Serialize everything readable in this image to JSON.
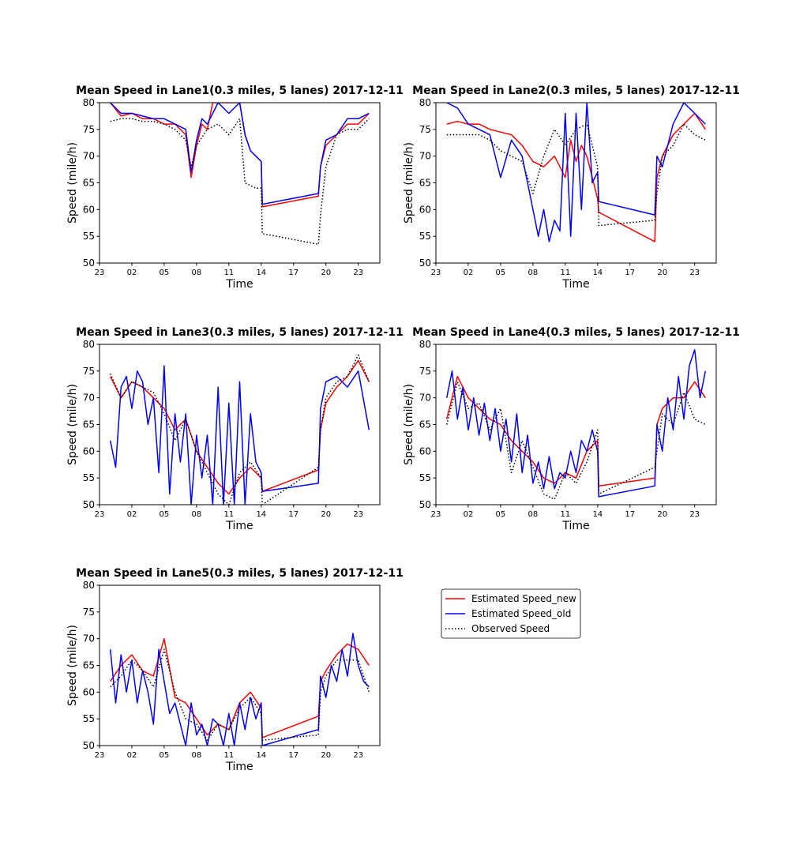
{
  "legend": {
    "entries": [
      {
        "label": "Estimated Speed_new",
        "color": "#ff0000",
        "style": "solid"
      },
      {
        "label": "Estimated Speed_old",
        "color": "#0000ff",
        "style": "solid"
      },
      {
        "label": "Observed Speed",
        "color": "#000000",
        "style": "dotted"
      }
    ]
  },
  "chart_data": [
    {
      "type": "line",
      "title": "Mean Speed in Lane1(0.3 miles, 5 lanes) 2017-12-11",
      "xlabel": "Time",
      "ylabel": "Speed (mile/h)",
      "ylim": [
        50,
        80
      ],
      "xlim": [
        23,
        49
      ],
      "xticks": [
        23,
        26,
        29,
        32,
        35,
        38,
        41,
        44,
        47
      ],
      "xtick_labels": [
        "23",
        "02",
        "05",
        "08",
        "11",
        "14",
        "17",
        "20",
        "23"
      ],
      "yticks": [
        50,
        55,
        60,
        65,
        70,
        75,
        80
      ],
      "series": [
        {
          "name": "Estimated Speed_new",
          "x": [
            24,
            25,
            26,
            27,
            28,
            29,
            30,
            31,
            31.5,
            32,
            32.5,
            33,
            33.5,
            34,
            35,
            36,
            36.5,
            37,
            37.5,
            38,
            38.1,
            43.3,
            43.5,
            44,
            45,
            46,
            47,
            48
          ],
          "values": [
            80,
            77.5,
            78,
            77,
            77,
            76,
            76,
            74,
            66,
            72,
            76,
            75,
            80,
            80,
            80,
            80,
            74,
            71,
            70,
            69,
            60.5,
            62.5,
            68,
            72,
            74,
            76,
            76,
            78
          ]
        },
        {
          "name": "Estimated Speed_old",
          "x": [
            24,
            25,
            26,
            27,
            28,
            29,
            30,
            31,
            31.5,
            32,
            32.5,
            33,
            33.5,
            34,
            35,
            36,
            36.5,
            37,
            37.5,
            38,
            38.1,
            43.3,
            43.5,
            44,
            45,
            46,
            47,
            48
          ],
          "values": [
            80,
            78,
            78,
            77.5,
            77,
            77,
            76,
            75,
            67,
            73,
            77,
            76,
            78,
            80,
            78,
            80,
            74,
            71,
            70,
            69,
            61,
            63,
            68,
            73,
            74,
            77,
            77,
            78
          ]
        },
        {
          "name": "Observed Speed",
          "x": [
            24,
            25,
            26,
            27,
            28,
            29,
            30,
            31,
            31.5,
            32,
            33,
            34,
            35,
            36,
            36.5,
            37,
            37.5,
            38,
            38.1,
            43.3,
            43.5,
            44,
            45,
            46,
            47,
            48
          ],
          "values": [
            76.5,
            77,
            77,
            76.5,
            76.5,
            76,
            75,
            73,
            68,
            72,
            75,
            76,
            74,
            77,
            65,
            64.5,
            64,
            64,
            55.5,
            53.5,
            59,
            68,
            74,
            75,
            75,
            77
          ]
        }
      ]
    },
    {
      "type": "line",
      "title": "Mean Speed in Lane2(0.3 miles, 5 lanes) 2017-12-11",
      "xlabel": "Time",
      "ylabel": "Speed (mile/h)",
      "ylim": [
        50,
        80
      ],
      "xlim": [
        23,
        49
      ],
      "xticks": [
        23,
        26,
        29,
        32,
        35,
        38,
        41,
        44,
        47
      ],
      "xtick_labels": [
        "23",
        "02",
        "05",
        "08",
        "11",
        "14",
        "17",
        "20",
        "23"
      ],
      "yticks": [
        50,
        55,
        60,
        65,
        70,
        75,
        80
      ],
      "series": [
        {
          "name": "Estimated Speed_new",
          "x": [
            24,
            25,
            26,
            27,
            28,
            29,
            30,
            31,
            32,
            33,
            34,
            35,
            35.5,
            36,
            36.5,
            37,
            37.5,
            38,
            38.1,
            43.3,
            43.5,
            44,
            45,
            46,
            47,
            48
          ],
          "values": [
            76,
            76.5,
            76,
            76,
            75,
            74.5,
            74,
            72,
            69,
            68,
            70,
            66,
            73,
            69,
            72,
            70,
            66,
            62,
            59.5,
            54,
            66,
            70,
            74,
            76,
            78,
            75
          ]
        },
        {
          "name": "Estimated Speed_old",
          "x": [
            24,
            25,
            26,
            27,
            28,
            29,
            30,
            31,
            32,
            32.5,
            33,
            33.5,
            34,
            34.5,
            35,
            35.5,
            36,
            36.5,
            37,
            37.5,
            38,
            38.1,
            43.3,
            43.5,
            44,
            45,
            46,
            47,
            48
          ],
          "values": [
            80,
            79,
            76,
            75,
            74,
            66,
            73,
            70,
            60,
            55,
            60,
            54,
            58,
            56,
            78,
            55,
            78,
            60,
            80,
            65,
            67,
            61.5,
            59,
            70,
            68,
            76,
            80,
            78,
            76
          ]
        },
        {
          "name": "Observed Speed",
          "x": [
            24,
            25,
            26,
            27,
            28,
            29,
            30,
            31,
            32,
            33,
            34,
            35,
            36,
            37,
            38,
            38.1,
            43.3,
            43.5,
            44,
            45,
            46,
            47,
            48
          ],
          "values": [
            74,
            74,
            74,
            74,
            73,
            71,
            70,
            69,
            63,
            70,
            75,
            72,
            75,
            76,
            68,
            57,
            58,
            63,
            70,
            72,
            76,
            74,
            73
          ]
        }
      ]
    },
    {
      "type": "line",
      "title": "Mean Speed in Lane3(0.3 miles, 5 lanes) 2017-12-11",
      "xlabel": "Time",
      "ylabel": "Speed (mile/h)",
      "ylim": [
        50,
        80
      ],
      "xlim": [
        23,
        49
      ],
      "xticks": [
        23,
        26,
        29,
        32,
        35,
        38,
        41,
        44,
        47
      ],
      "xtick_labels": [
        "23",
        "02",
        "05",
        "08",
        "11",
        "14",
        "17",
        "20",
        "23"
      ],
      "yticks": [
        50,
        55,
        60,
        65,
        70,
        75,
        80
      ],
      "series": [
        {
          "name": "Estimated Speed_new",
          "x": [
            24,
            25,
            26,
            27,
            28,
            29,
            30,
            31,
            32,
            33,
            34,
            35,
            36,
            37,
            38,
            38.1,
            43.3,
            43.5,
            44,
            45,
            46,
            47,
            48
          ],
          "values": [
            74,
            70,
            73,
            72,
            70,
            68,
            64,
            66,
            60,
            57,
            54,
            52,
            55,
            57,
            55,
            52.5,
            56.5,
            64,
            69,
            72,
            74,
            77,
            73
          ]
        },
        {
          "name": "Estimated Speed_old",
          "x": [
            24,
            24.5,
            25,
            25.5,
            26,
            26.5,
            27,
            27.5,
            28,
            28.5,
            29,
            29.5,
            30,
            30.5,
            31,
            31.5,
            32,
            32.5,
            33,
            33.5,
            34,
            34.5,
            35,
            35.5,
            36,
            36.5,
            37,
            37.5,
            38,
            38.1,
            43.3,
            43.5,
            44,
            45,
            46,
            47,
            48
          ],
          "values": [
            62,
            57,
            72,
            74,
            68,
            75,
            73,
            65,
            70,
            56,
            76,
            52,
            67,
            58,
            67,
            50,
            63,
            55,
            63,
            50,
            72,
            50,
            69,
            50,
            73,
            50,
            67,
            58,
            56,
            52.5,
            54,
            68,
            73,
            74,
            72,
            75,
            64
          ]
        },
        {
          "name": "Observed Speed",
          "x": [
            24,
            25,
            26,
            27,
            28,
            29,
            30,
            31,
            32,
            33,
            34,
            35,
            36,
            37,
            38,
            38.1,
            43.3,
            43.5,
            44,
            45,
            46,
            47,
            48
          ],
          "values": [
            74.5,
            70,
            73,
            72,
            71,
            67,
            62,
            66,
            60,
            56,
            52,
            50,
            56,
            58,
            55,
            50,
            57,
            64,
            70,
            73,
            74,
            78,
            73
          ]
        }
      ]
    },
    {
      "type": "line",
      "title": "Mean Speed in Lane4(0.3 miles, 5 lanes) 2017-12-11",
      "xlabel": "Time",
      "ylabel": "Speed (mile/h)",
      "ylim": [
        50,
        80
      ],
      "xlim": [
        23,
        49
      ],
      "xticks": [
        23,
        26,
        29,
        32,
        35,
        38,
        41,
        44,
        47
      ],
      "xtick_labels": [
        "23",
        "02",
        "05",
        "08",
        "11",
        "14",
        "17",
        "20",
        "23"
      ],
      "yticks": [
        50,
        55,
        60,
        65,
        70,
        75,
        80
      ],
      "series": [
        {
          "name": "Estimated Speed_new",
          "x": [
            24,
            25,
            26,
            27,
            28,
            29,
            30,
            31,
            32,
            33,
            34,
            35,
            36,
            37,
            38,
            38.1,
            43.3,
            43.5,
            44,
            45,
            46,
            47,
            48
          ],
          "values": [
            66,
            74,
            70,
            68,
            66,
            65,
            62,
            60,
            58,
            55,
            54,
            56,
            55,
            60,
            62,
            53.5,
            55,
            65,
            68,
            70,
            70,
            73,
            70
          ]
        },
        {
          "name": "Estimated Speed_old",
          "x": [
            24,
            24.5,
            25,
            25.5,
            26,
            26.5,
            27,
            27.5,
            28,
            28.5,
            29,
            29.5,
            30,
            30.5,
            31,
            31.5,
            32,
            32.5,
            33,
            33.5,
            34,
            34.5,
            35,
            35.5,
            36,
            36.5,
            37,
            37.5,
            38,
            38.1,
            43.3,
            43.5,
            44,
            44.5,
            45,
            45.5,
            46,
            46.5,
            47,
            47.5,
            48
          ],
          "values": [
            70,
            75,
            66,
            72,
            64,
            70,
            63,
            69,
            62,
            68,
            60,
            66,
            58,
            67,
            56,
            63,
            54,
            58,
            53,
            59,
            53,
            56,
            55,
            60,
            56,
            62,
            60,
            64,
            60,
            51.5,
            53.5,
            65,
            60,
            70,
            64,
            74,
            66,
            76,
            79,
            70,
            75
          ]
        },
        {
          "name": "Observed Speed",
          "x": [
            24,
            25,
            26,
            27,
            28,
            29,
            30,
            31,
            32,
            33,
            34,
            35,
            36,
            37,
            38,
            38.1,
            43.3,
            43.5,
            44,
            45,
            46,
            47,
            48
          ],
          "values": [
            65,
            73,
            68,
            69,
            64,
            68,
            56,
            62,
            57,
            52,
            51,
            56,
            54,
            58,
            64,
            52,
            57,
            60,
            67,
            65,
            71,
            66,
            65
          ]
        }
      ]
    },
    {
      "type": "line",
      "title": "Mean Speed in Lane5(0.3 miles, 5 lanes) 2017-12-11",
      "xlabel": "Time",
      "ylabel": "Speed (mile/h)",
      "ylim": [
        50,
        80
      ],
      "xlim": [
        23,
        49
      ],
      "xticks": [
        23,
        26,
        29,
        32,
        35,
        38,
        41,
        44,
        47
      ],
      "xtick_labels": [
        "23",
        "02",
        "05",
        "08",
        "11",
        "14",
        "17",
        "20",
        "23"
      ],
      "yticks": [
        50,
        55,
        60,
        65,
        70,
        75,
        80
      ],
      "series": [
        {
          "name": "Estimated Speed_new",
          "x": [
            24,
            25,
            26,
            27,
            28,
            29,
            30,
            31,
            32,
            33,
            34,
            35,
            36,
            37,
            38,
            38.1,
            43.3,
            43.5,
            44,
            45,
            46,
            47,
            48
          ],
          "values": [
            62,
            65,
            67,
            64,
            63,
            70,
            59,
            58,
            55,
            52,
            54,
            53,
            58,
            60,
            57,
            51.5,
            55.5,
            62,
            64,
            67,
            69,
            68,
            65
          ]
        },
        {
          "name": "Estimated Speed_old",
          "x": [
            24,
            24.5,
            25,
            25.5,
            26,
            26.5,
            27,
            27.5,
            28,
            28.5,
            29,
            29.5,
            30,
            30.5,
            31,
            31.5,
            32,
            32.5,
            33,
            33.5,
            34,
            34.5,
            35,
            35.5,
            36,
            36.5,
            37,
            37.5,
            38,
            38.1,
            43.3,
            43.5,
            44,
            44.5,
            45,
            45.5,
            46,
            46.5,
            47,
            47.5,
            48
          ],
          "values": [
            68,
            58,
            67,
            60,
            66,
            58,
            64,
            60,
            54,
            68,
            62,
            56,
            58,
            54,
            50,
            58,
            52,
            54,
            50,
            55,
            54,
            50,
            56,
            50,
            58,
            53,
            59,
            55,
            58,
            50,
            53,
            63,
            59,
            65,
            62,
            68,
            63,
            71,
            65,
            62,
            61
          ]
        },
        {
          "name": "Observed Speed",
          "x": [
            24,
            25,
            26,
            27,
            28,
            29,
            30,
            31,
            32,
            33,
            34,
            35,
            36,
            37,
            38,
            38.1,
            43.3,
            43.5,
            44,
            45,
            46,
            47,
            48
          ],
          "values": [
            61,
            63,
            66,
            64,
            61,
            68,
            60,
            55,
            54,
            51,
            54,
            53,
            57,
            59,
            56,
            51,
            52,
            60,
            63,
            66,
            66,
            66,
            60
          ]
        }
      ]
    }
  ]
}
